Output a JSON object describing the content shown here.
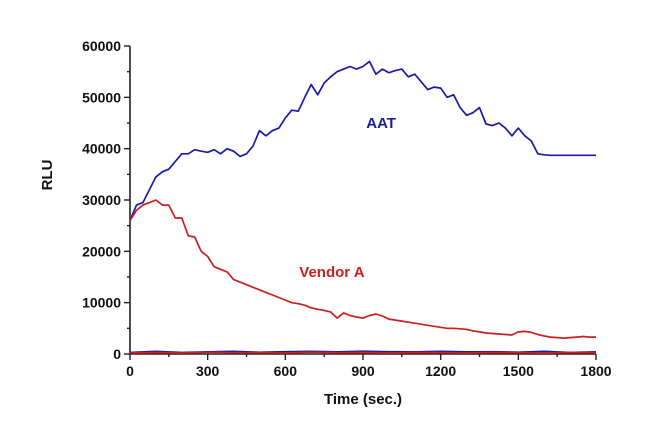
{
  "chart_data": {
    "type": "line",
    "xlabel": "Time (sec.)",
    "ylabel": "RLU",
    "xlim": [
      0,
      1800
    ],
    "ylim": [
      0,
      60000
    ],
    "x_ticks": [
      0,
      300,
      600,
      900,
      1200,
      1500,
      1800
    ],
    "y_ticks": [
      0,
      10000,
      20000,
      30000,
      40000,
      50000,
      60000
    ],
    "grid": false,
    "series": [
      {
        "name": "AAT",
        "color": "#1a1aa8",
        "x": [
          0,
          25,
          50,
          75,
          100,
          125,
          150,
          175,
          200,
          225,
          250,
          275,
          300,
          325,
          350,
          375,
          400,
          425,
          450,
          475,
          500,
          525,
          550,
          575,
          600,
          625,
          650,
          675,
          700,
          725,
          750,
          775,
          800,
          825,
          850,
          875,
          900,
          925,
          950,
          975,
          1000,
          1025,
          1050,
          1075,
          1100,
          1125,
          1150,
          1175,
          1200,
          1225,
          1250,
          1275,
          1300,
          1325,
          1350,
          1375,
          1400,
          1425,
          1450,
          1475,
          1500,
          1525,
          1550,
          1575,
          1600,
          1625,
          1650,
          1675,
          1700,
          1725,
          1750,
          1775,
          1800
        ],
        "values": [
          26000,
          29000,
          29500,
          32000,
          34500,
          35500,
          36000,
          37500,
          39000,
          39000,
          39800,
          39500,
          39300,
          39800,
          39000,
          40000,
          39500,
          38500,
          39000,
          40500,
          43500,
          42500,
          43500,
          44000,
          46000,
          47500,
          47300,
          50000,
          52500,
          50500,
          52800,
          54000,
          55000,
          55500,
          56000,
          55500,
          56000,
          57000,
          54500,
          55500,
          54800,
          55200,
          55500,
          54000,
          54500,
          53000,
          51500,
          52000,
          51800,
          50000,
          50500,
          48000,
          46500,
          47000,
          48000,
          44800,
          44500,
          45000,
          44000,
          42500,
          44000,
          42500,
          41500,
          39000,
          38800,
          38700,
          38700,
          38700,
          38700,
          38700,
          38700,
          38700,
          38700
        ],
        "label": "AAT"
      },
      {
        "name": "Vendor A",
        "color": "#cc1f1f",
        "x": [
          0,
          25,
          50,
          75,
          100,
          125,
          150,
          175,
          200,
          225,
          250,
          275,
          300,
          325,
          350,
          375,
          400,
          425,
          450,
          475,
          500,
          525,
          550,
          575,
          600,
          625,
          650,
          675,
          700,
          725,
          750,
          775,
          800,
          825,
          850,
          875,
          900,
          925,
          950,
          975,
          1000,
          1025,
          1050,
          1075,
          1100,
          1125,
          1150,
          1175,
          1200,
          1225,
          1250,
          1275,
          1300,
          1325,
          1350,
          1375,
          1400,
          1425,
          1450,
          1475,
          1500,
          1525,
          1550,
          1575,
          1600,
          1625,
          1650,
          1675,
          1700,
          1725,
          1750,
          1775,
          1800
        ],
        "values": [
          26000,
          28000,
          29000,
          29500,
          30000,
          29000,
          29000,
          26500,
          26500,
          23000,
          22800,
          20000,
          19000,
          17000,
          16500,
          16000,
          14500,
          14000,
          13500,
          13000,
          12500,
          12000,
          11500,
          11000,
          10500,
          10000,
          9800,
          9500,
          9000,
          8700,
          8500,
          8200,
          7000,
          8000,
          7500,
          7200,
          7000,
          7500,
          7800,
          7400,
          6800,
          6600,
          6400,
          6200,
          6000,
          5800,
          5600,
          5400,
          5200,
          5000,
          5000,
          4900,
          4800,
          4500,
          4300,
          4100,
          4000,
          3900,
          3800,
          3700,
          4300,
          4400,
          4200,
          3800,
          3500,
          3300,
          3200,
          3100,
          3200,
          3300,
          3400,
          3300,
          3300
        ],
        "label": "Vendor A"
      },
      {
        "name": "",
        "color": "#1a1aa8",
        "x": [
          0,
          100,
          200,
          300,
          400,
          500,
          600,
          700,
          800,
          900,
          1000,
          1100,
          1200,
          1300,
          1400,
          1500,
          1600,
          1700,
          1800
        ],
        "values": [
          300,
          500,
          300,
          400,
          500,
          350,
          450,
          500,
          400,
          550,
          450,
          400,
          500,
          400,
          450,
          350,
          500,
          300,
          400
        ]
      },
      {
        "name": "",
        "color": "#cc1f1f",
        "x": [
          0,
          100,
          200,
          300,
          400,
          500,
          600,
          700,
          800,
          900,
          1000,
          1100,
          1200,
          1300,
          1400,
          1500,
          1600,
          1700,
          1800
        ],
        "values": [
          200,
          300,
          200,
          350,
          250,
          300,
          200,
          350,
          250,
          300,
          200,
          300,
          250,
          200,
          300,
          250,
          200,
          300,
          250
        ]
      }
    ],
    "annotations": [
      {
        "text": "AAT",
        "x": 970,
        "y": 44000,
        "color": "#1a1aa8"
      },
      {
        "text": "Vendor A",
        "x": 780,
        "y": 15000,
        "color": "#cc1f1f"
      }
    ]
  }
}
